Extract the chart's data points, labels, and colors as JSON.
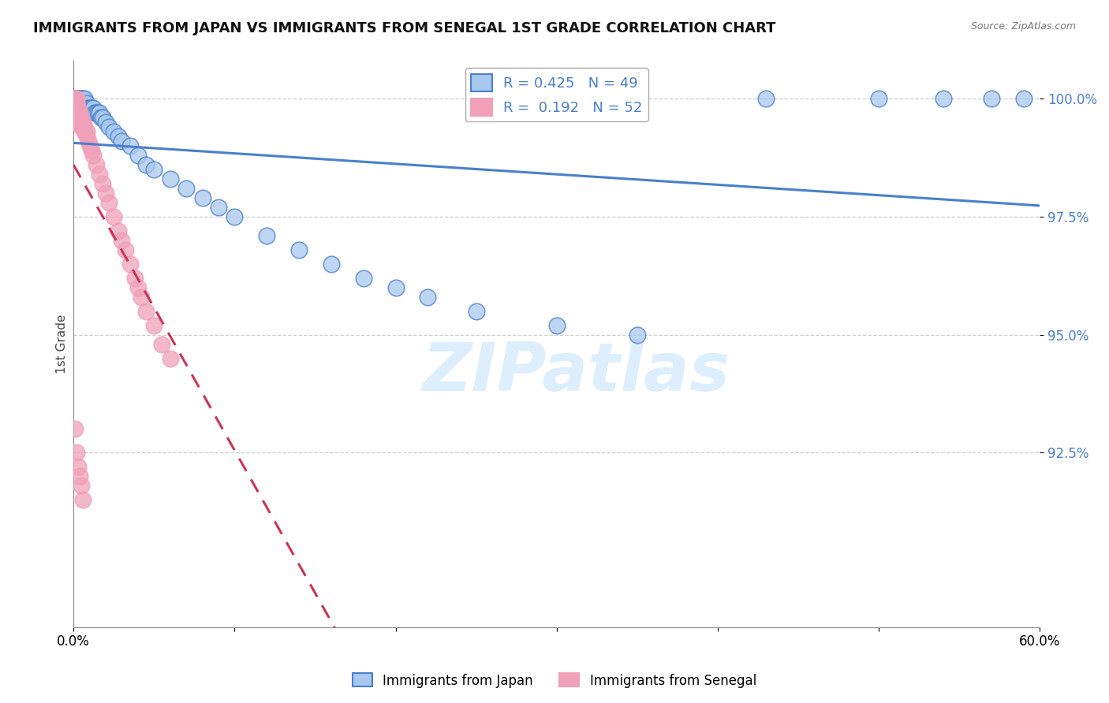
{
  "title": "IMMIGRANTS FROM JAPAN VS IMMIGRANTS FROM SENEGAL 1ST GRADE CORRELATION CHART",
  "source_text": "Source: ZipAtlas.com",
  "ylabel": "1st Grade",
  "legend_japan": "Immigrants from Japan",
  "legend_senegal": "Immigrants from Senegal",
  "R_japan": 0.425,
  "N_japan": 49,
  "R_senegal": 0.192,
  "N_senegal": 52,
  "xmin": 0.0,
  "xmax": 0.6,
  "ymin": 0.888,
  "ymax": 1.008,
  "yticks": [
    0.925,
    0.95,
    0.975,
    1.0
  ],
  "ytick_labels": [
    "92.5%",
    "95.0%",
    "97.5%",
    "100.0%"
  ],
  "xticks": [
    0.0,
    0.1,
    0.2,
    0.3,
    0.4,
    0.5,
    0.6
  ],
  "xtick_labels": [
    "0.0%",
    "",
    "",
    "",
    "",
    "",
    "60.0%"
  ],
  "color_japan": "#a8c8f0",
  "color_senegal": "#f0a0b8",
  "line_color_japan": "#4a7fcc",
  "line_color_senegal": "#cc3355",
  "watermark_color": "#ddeeff",
  "japan_x": [
    0.001,
    0.002,
    0.002,
    0.003,
    0.003,
    0.004,
    0.005,
    0.005,
    0.006,
    0.007,
    0.008,
    0.009,
    0.01,
    0.011,
    0.012,
    0.013,
    0.014,
    0.015,
    0.016,
    0.017,
    0.018,
    0.02,
    0.022,
    0.025,
    0.028,
    0.03,
    0.035,
    0.04,
    0.045,
    0.05,
    0.06,
    0.07,
    0.08,
    0.09,
    0.1,
    0.12,
    0.14,
    0.16,
    0.18,
    0.2,
    0.22,
    0.25,
    0.3,
    0.35,
    0.43,
    0.5,
    0.54,
    0.57,
    0.59
  ],
  "japan_y": [
    1.0,
    1.0,
    1.0,
    1.0,
    1.0,
    1.0,
    1.0,
    1.0,
    1.0,
    1.0,
    0.999,
    0.998,
    0.998,
    0.998,
    0.998,
    0.997,
    0.997,
    0.997,
    0.997,
    0.996,
    0.996,
    0.995,
    0.994,
    0.993,
    0.992,
    0.991,
    0.99,
    0.988,
    0.986,
    0.985,
    0.983,
    0.981,
    0.979,
    0.977,
    0.975,
    0.971,
    0.968,
    0.965,
    0.962,
    0.96,
    0.958,
    0.955,
    0.952,
    0.95,
    1.0,
    1.0,
    1.0,
    1.0,
    1.0
  ],
  "senegal_x": [
    0.001,
    0.001,
    0.001,
    0.001,
    0.002,
    0.002,
    0.002,
    0.002,
    0.002,
    0.003,
    0.003,
    0.003,
    0.003,
    0.004,
    0.004,
    0.004,
    0.005,
    0.005,
    0.005,
    0.006,
    0.006,
    0.007,
    0.007,
    0.008,
    0.008,
    0.009,
    0.01,
    0.011,
    0.012,
    0.014,
    0.016,
    0.018,
    0.02,
    0.022,
    0.025,
    0.028,
    0.03,
    0.032,
    0.035,
    0.038,
    0.04,
    0.042,
    0.045,
    0.05,
    0.055,
    0.06,
    0.001,
    0.002,
    0.003,
    0.004,
    0.005,
    0.006
  ],
  "senegal_y": [
    1.0,
    0.999,
    0.998,
    0.997,
    1.0,
    0.999,
    0.998,
    0.997,
    0.996,
    0.998,
    0.997,
    0.996,
    0.995,
    0.997,
    0.996,
    0.995,
    0.996,
    0.995,
    0.994,
    0.995,
    0.994,
    0.994,
    0.993,
    0.993,
    0.992,
    0.991,
    0.99,
    0.989,
    0.988,
    0.986,
    0.984,
    0.982,
    0.98,
    0.978,
    0.975,
    0.972,
    0.97,
    0.968,
    0.965,
    0.962,
    0.96,
    0.958,
    0.955,
    0.952,
    0.948,
    0.945,
    0.93,
    0.925,
    0.922,
    0.92,
    0.918,
    0.915
  ]
}
